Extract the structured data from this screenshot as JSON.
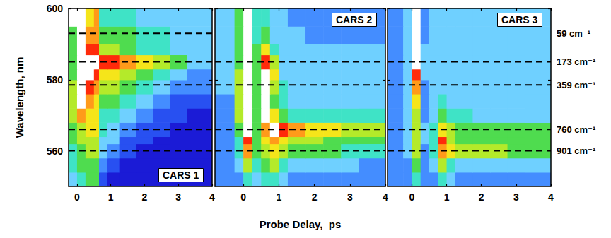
{
  "chart_data": [
    {
      "type": "heatmap",
      "title": "CARS 1",
      "ylabel": "Wavelength, nm",
      "xlim": [
        -0.25,
        4
      ],
      "xticks": [
        0,
        1,
        2,
        3,
        4
      ],
      "ylim": [
        550,
        600
      ],
      "yticks": [
        560,
        580,
        600
      ],
      "zlim": [
        0,
        10
      ],
      "x_edges": [
        -0.25,
        0,
        0.25,
        0.5,
        0.65,
        0.9,
        1.25,
        1.75,
        2.25,
        2.75,
        3.25,
        4
      ],
      "y_edges": [
        550,
        554,
        558,
        562,
        564,
        568,
        572,
        576,
        580,
        583,
        587,
        590,
        595,
        600
      ],
      "z": [
        [
          3,
          4,
          5,
          5,
          1,
          0,
          0,
          0,
          0,
          0,
          0
        ],
        [
          4,
          5,
          5,
          5,
          2,
          1,
          0,
          0,
          0,
          0,
          0
        ],
        [
          4,
          5,
          6,
          6,
          3,
          2,
          1,
          0,
          0,
          0,
          0
        ],
        [
          5,
          6,
          6,
          6,
          3,
          3,
          1,
          1,
          0,
          0,
          0
        ],
        [
          5,
          6,
          7,
          7,
          4,
          3,
          2,
          1,
          1,
          0,
          0
        ],
        [
          6,
          8,
          7,
          7,
          4,
          4,
          3,
          2,
          1,
          1,
          0
        ],
        [
          6,
          10,
          8,
          7,
          5,
          5,
          4,
          3,
          2,
          1,
          1
        ],
        [
          6,
          10,
          9,
          8,
          6,
          6,
          5,
          4,
          3,
          2,
          2
        ],
        [
          5,
          10,
          10,
          9,
          7,
          7,
          6,
          5,
          4,
          3,
          2
        ],
        [
          5,
          10,
          10,
          10,
          9,
          9,
          8,
          7,
          6,
          5,
          3
        ],
        [
          5,
          10,
          9,
          9,
          6,
          6,
          5,
          4,
          4,
          3,
          3
        ],
        [
          5,
          10,
          8,
          8,
          5,
          5,
          5,
          4,
          4,
          3,
          3
        ],
        [
          10,
          10,
          7,
          8,
          4,
          4,
          4,
          3,
          3,
          3,
          3
        ]
      ],
      "lines": [
        593,
        585,
        578.5,
        566,
        560
      ],
      "line_style": "dashed"
    },
    {
      "type": "heatmap",
      "title": "CARS 2",
      "xlabel": "Probe Delay,  ps",
      "tick_labels": "x",
      "xlim": [
        -0.8,
        4
      ],
      "xticks": [
        0,
        1,
        2,
        3,
        4
      ],
      "ylim": [
        550,
        600
      ],
      "yticks": [
        560,
        580,
        600
      ],
      "zlim": [
        0,
        10
      ],
      "x_edges": [
        -0.8,
        -0.25,
        0,
        0.25,
        0.5,
        0.75,
        1,
        1.25,
        1.75,
        2.25,
        2.75,
        3.25,
        4
      ],
      "y_edges": [
        550,
        554,
        558,
        562,
        564,
        568,
        572,
        576,
        580,
        583,
        587,
        590,
        595,
        600
      ],
      "z": [
        [
          2,
          2,
          4,
          3,
          4,
          4,
          3,
          2,
          2,
          2,
          2,
          2
        ],
        [
          2,
          3,
          6,
          4,
          5,
          6,
          4,
          3,
          3,
          3,
          3,
          2
        ],
        [
          2,
          4,
          8,
          5,
          6,
          7,
          6,
          5,
          5,
          5,
          4,
          4
        ],
        [
          2,
          4,
          9,
          5,
          7,
          8,
          7,
          6,
          6,
          5,
          5,
          5
        ],
        [
          2,
          5,
          10,
          5,
          8,
          10,
          9,
          8,
          7,
          7,
          6,
          6
        ],
        [
          2,
          6,
          10,
          5,
          10,
          7,
          5,
          4,
          4,
          4,
          4,
          4
        ],
        [
          2,
          6,
          10,
          5,
          10,
          5,
          4,
          3,
          3,
          3,
          3,
          3
        ],
        [
          3,
          6,
          10,
          5,
          10,
          6,
          4,
          3,
          3,
          3,
          3,
          3
        ],
        [
          3,
          6,
          10,
          5,
          10,
          7,
          3,
          3,
          3,
          3,
          3,
          3
        ],
        [
          3,
          5,
          10,
          5,
          9,
          6,
          3,
          3,
          3,
          3,
          3,
          3
        ],
        [
          3,
          5,
          10,
          5,
          7,
          4,
          3,
          3,
          3,
          3,
          3,
          3
        ],
        [
          3,
          5,
          10,
          4,
          5,
          3,
          3,
          3,
          2,
          2,
          2,
          2
        ],
        [
          3,
          5,
          10,
          4,
          4,
          3,
          3,
          2,
          2,
          2,
          2,
          2
        ]
      ],
      "lines": [
        585,
        578.5,
        566,
        560
      ],
      "line_style": "dashed"
    },
    {
      "type": "heatmap",
      "title": "CARS 3",
      "tick_labels": "x",
      "xlim": [
        -0.7,
        4
      ],
      "xticks": [
        0,
        1,
        2,
        3,
        4
      ],
      "ylim": [
        550,
        600
      ],
      "yticks": [
        560,
        580,
        600
      ],
      "zlim": [
        0,
        10
      ],
      "x_edges": [
        -0.7,
        -0.25,
        0,
        0.25,
        0.5,
        0.75,
        1,
        1.25,
        1.75,
        2.25,
        2.75,
        3.25,
        4
      ],
      "y_edges": [
        550,
        554,
        558,
        562,
        564,
        568,
        572,
        576,
        580,
        583,
        587,
        590,
        595,
        600
      ],
      "z": [
        [
          2,
          2,
          4,
          2,
          2,
          4,
          3,
          2,
          2,
          2,
          2,
          2
        ],
        [
          2,
          2,
          5,
          2,
          3,
          6,
          4,
          3,
          3,
          3,
          3,
          3
        ],
        [
          2,
          3,
          6,
          2,
          4,
          8,
          7,
          6,
          6,
          6,
          5,
          5
        ],
        [
          2,
          3,
          6,
          3,
          4,
          9,
          6,
          5,
          5,
          5,
          5,
          5
        ],
        [
          2,
          3,
          6,
          3,
          4,
          7,
          6,
          5,
          5,
          5,
          5,
          5
        ],
        [
          2,
          3,
          6,
          2,
          3,
          5,
          4,
          4,
          3,
          3,
          3,
          3
        ],
        [
          2,
          3,
          7,
          2,
          3,
          4,
          3,
          3,
          3,
          3,
          3,
          3
        ],
        [
          2,
          3,
          8,
          2,
          3,
          3,
          3,
          3,
          3,
          3,
          3,
          3
        ],
        [
          2,
          3,
          9,
          3,
          3,
          3,
          3,
          3,
          3,
          3,
          3,
          3
        ],
        [
          2,
          3,
          10,
          3,
          3,
          3,
          3,
          3,
          3,
          3,
          3,
          3
        ],
        [
          2,
          3,
          10,
          3,
          3,
          3,
          3,
          3,
          3,
          3,
          3,
          3
        ],
        [
          2,
          3,
          10,
          2,
          3,
          3,
          3,
          3,
          3,
          3,
          3,
          3
        ],
        [
          2,
          3,
          10,
          2,
          3,
          3,
          3,
          3,
          3,
          3,
          3,
          3
        ]
      ],
      "lines": [
        585,
        578.5,
        566,
        560
      ],
      "line_style": "dashed",
      "annotations": [
        {
          "y": 593,
          "label": "59 cm⁻¹"
        },
        {
          "y": 585,
          "label": "173 cm⁻¹"
        },
        {
          "y": 578.5,
          "label": "359 cm⁻¹"
        },
        {
          "y": 566,
          "label": "760 cm⁻¹"
        },
        {
          "y": 560,
          "label": "901 cm⁻¹"
        }
      ]
    }
  ]
}
